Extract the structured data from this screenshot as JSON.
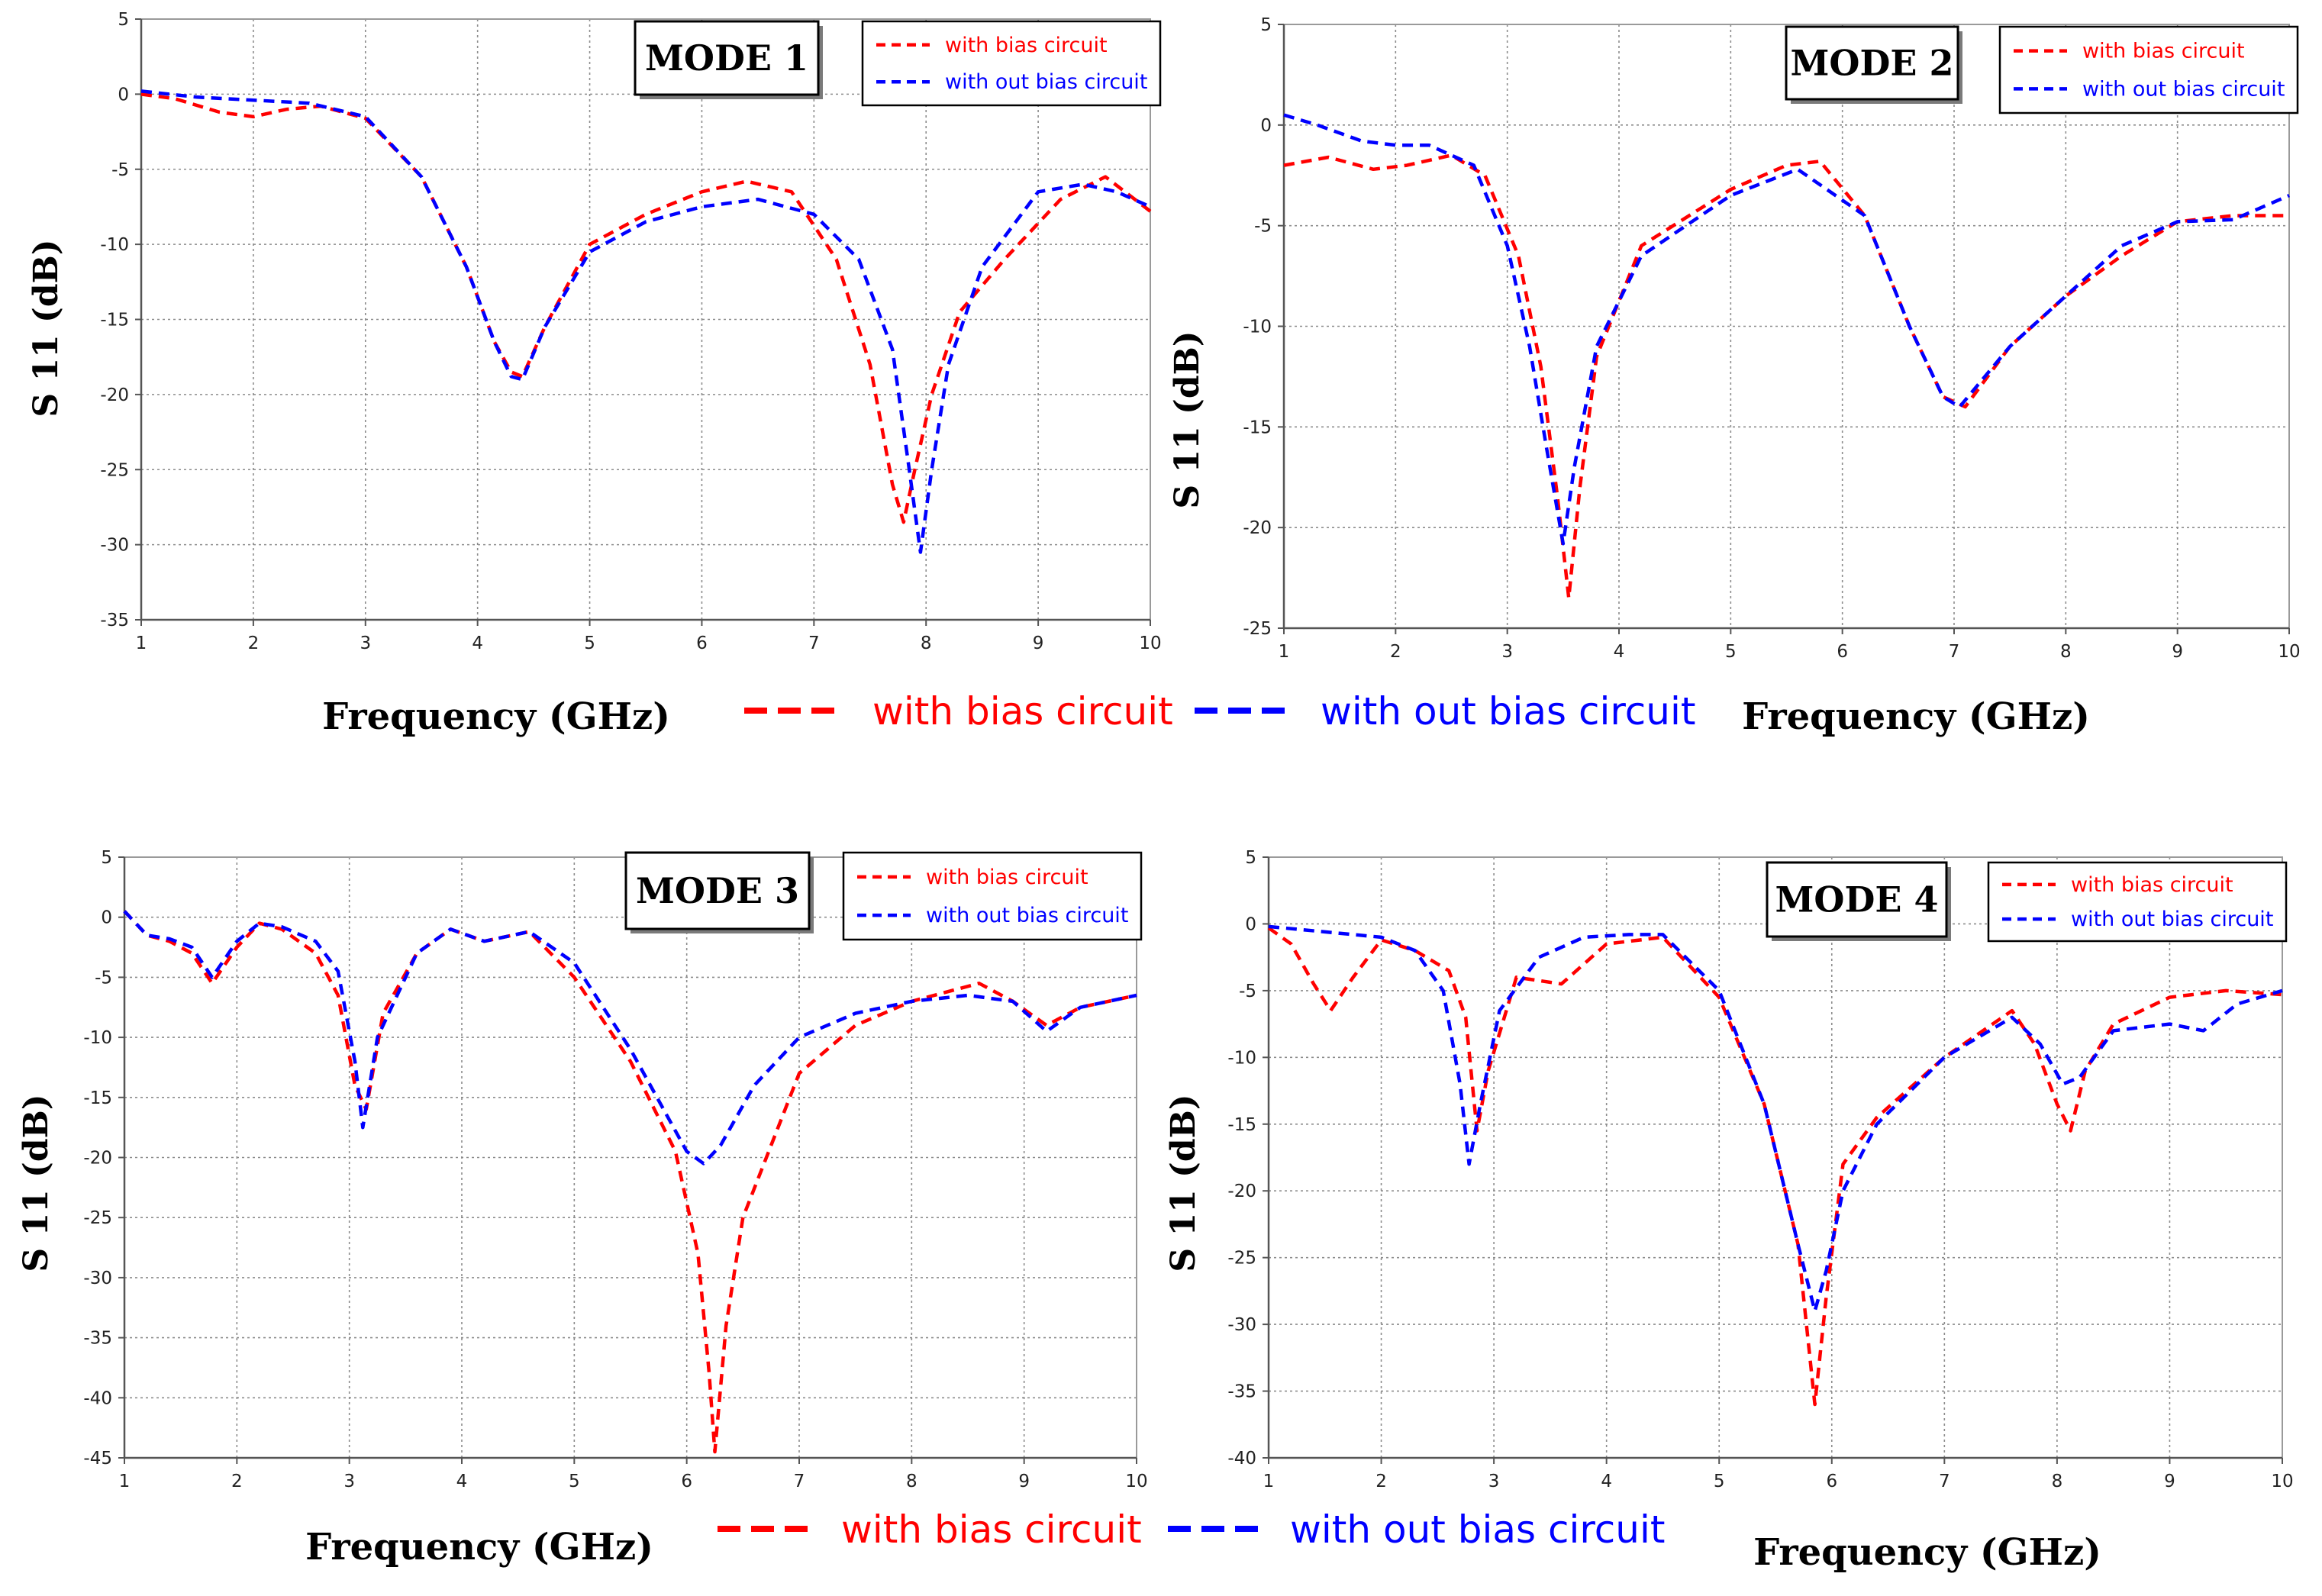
{
  "figure": {
    "big_legend": [
      {
        "label": "with bias circuit",
        "color": "#ff0000"
      },
      {
        "label": "with out bias circuit",
        "color": "#0000ff"
      }
    ]
  },
  "chart_data": [
    {
      "type": "line",
      "title": "MODE 1",
      "xlabel": "Frequency (GHz)",
      "ylabel": "S 11 (dB)",
      "xlim": [
        1,
        10
      ],
      "ylim": [
        -35,
        5
      ],
      "xticks": [
        1,
        2,
        3,
        4,
        5,
        6,
        7,
        8,
        9,
        10
      ],
      "yticks": [
        5,
        0,
        -5,
        -10,
        -15,
        -20,
        -25,
        -30,
        -35
      ],
      "grid": true,
      "legend_position": "top-right",
      "series": [
        {
          "name": "with bias circuit",
          "color": "#ff0000",
          "x": [
            1.0,
            1.3,
            1.7,
            2.0,
            2.3,
            2.6,
            3.0,
            3.5,
            3.9,
            4.15,
            4.3,
            4.4,
            4.6,
            5.0,
            5.5,
            6.0,
            6.4,
            6.8,
            7.2,
            7.5,
            7.7,
            7.8,
            7.9,
            8.05,
            8.3,
            8.7,
            9.2,
            9.6,
            10.0
          ],
          "y": [
            0,
            -0.3,
            -1.2,
            -1.5,
            -1.0,
            -0.8,
            -1.6,
            -5.5,
            -11.5,
            -16.5,
            -18.5,
            -18.8,
            -15.5,
            -10.0,
            -8.0,
            -6.5,
            -5.8,
            -6.5,
            -11.0,
            -18.0,
            -26.0,
            -28.5,
            -25.0,
            -20.0,
            -14.5,
            -11.0,
            -7.0,
            -5.5,
            -7.8
          ]
        },
        {
          "name": "with out bias circuit",
          "color": "#0000ff",
          "x": [
            1.0,
            1.5,
            2.0,
            2.5,
            3.0,
            3.5,
            3.9,
            4.15,
            4.3,
            4.4,
            4.6,
            5.0,
            5.5,
            6.0,
            6.5,
            7.0,
            7.4,
            7.7,
            7.85,
            7.95,
            8.05,
            8.2,
            8.5,
            9.0,
            9.4,
            9.7,
            10.0
          ],
          "y": [
            0.2,
            -0.2,
            -0.4,
            -0.6,
            -1.5,
            -5.5,
            -11.5,
            -16.5,
            -18.8,
            -19.0,
            -15.5,
            -10.5,
            -8.5,
            -7.5,
            -7.0,
            -8.0,
            -11.0,
            -17.0,
            -25.0,
            -30.5,
            -25.0,
            -18.0,
            -11.5,
            -6.5,
            -6.0,
            -6.5,
            -7.5
          ]
        }
      ]
    },
    {
      "type": "line",
      "title": "MODE 2",
      "xlabel": "Frequency (GHz)",
      "ylabel": "S 11 (dB)",
      "xlim": [
        1,
        10
      ],
      "ylim": [
        -25,
        5
      ],
      "xticks": [
        1,
        2,
        3,
        4,
        5,
        6,
        7,
        8,
        9,
        10
      ],
      "yticks": [
        5,
        0,
        -5,
        -10,
        -15,
        -20,
        -25
      ],
      "grid": true,
      "legend_position": "top-right",
      "series": [
        {
          "name": "with bias circuit",
          "color": "#ff0000",
          "x": [
            1.0,
            1.4,
            1.8,
            2.1,
            2.5,
            2.8,
            3.1,
            3.3,
            3.45,
            3.55,
            3.65,
            3.8,
            4.2,
            5.0,
            5.5,
            5.8,
            6.2,
            6.6,
            6.9,
            7.1,
            7.5,
            8.0,
            8.5,
            9.0,
            9.5,
            10.0
          ],
          "y": [
            -2.0,
            -1.6,
            -2.2,
            -2.0,
            -1.5,
            -2.5,
            -6.5,
            -12.0,
            -18.5,
            -23.5,
            -18.0,
            -11.5,
            -6.0,
            -3.2,
            -2.0,
            -1.8,
            -4.5,
            -10.0,
            -13.5,
            -14.0,
            -11.0,
            -8.5,
            -6.5,
            -4.8,
            -4.5,
            -4.5
          ]
        },
        {
          "name": "with out bias circuit",
          "color": "#0000ff",
          "x": [
            1.0,
            1.3,
            1.7,
            2.0,
            2.3,
            2.7,
            3.0,
            3.2,
            3.35,
            3.5,
            3.6,
            3.8,
            4.2,
            5.0,
            5.6,
            6.2,
            6.6,
            6.9,
            7.05,
            7.5,
            8.0,
            8.5,
            9.0,
            9.5,
            10.0
          ],
          "y": [
            0.5,
            0.0,
            -0.8,
            -1.0,
            -1.0,
            -2.0,
            -6.0,
            -11.0,
            -16.0,
            -20.8,
            -17.0,
            -11.0,
            -6.5,
            -3.5,
            -2.2,
            -4.5,
            -10.0,
            -13.5,
            -14.0,
            -11.0,
            -8.5,
            -6.0,
            -4.8,
            -4.7,
            -3.5
          ]
        }
      ]
    },
    {
      "type": "line",
      "title": "MODE 3",
      "xlabel": "Frequency (GHz)",
      "ylabel": "S 11 (dB)",
      "xlim": [
        1,
        10
      ],
      "ylim": [
        -45,
        5
      ],
      "xticks": [
        1,
        2,
        3,
        4,
        5,
        6,
        7,
        8,
        9,
        10
      ],
      "yticks": [
        5,
        0,
        -5,
        -10,
        -15,
        -20,
        -25,
        -30,
        -35,
        -40,
        -45
      ],
      "grid": true,
      "legend_position": "top-right",
      "series": [
        {
          "name": "with bias circuit",
          "color": "#ff0000",
          "x": [
            1.0,
            1.2,
            1.4,
            1.6,
            1.78,
            2.0,
            2.2,
            2.4,
            2.7,
            2.9,
            3.05,
            3.15,
            3.3,
            3.6,
            3.9,
            4.2,
            4.6,
            5.0,
            5.5,
            5.9,
            6.1,
            6.2,
            6.25,
            6.35,
            6.5,
            7.0,
            7.5,
            8.0,
            8.6,
            8.9,
            9.2,
            9.5,
            10.0
          ],
          "y": [
            0.5,
            -1.5,
            -2.0,
            -3.0,
            -5.5,
            -2.5,
            -0.5,
            -1.0,
            -3.0,
            -6.5,
            -14.0,
            -16.0,
            -8.0,
            -3.0,
            -1.0,
            -2.0,
            -1.2,
            -5.0,
            -12.0,
            -19.5,
            -28.0,
            -38.0,
            -44.5,
            -34.0,
            -25.0,
            -13.0,
            -9.0,
            -7.0,
            -5.5,
            -7.0,
            -9.0,
            -7.5,
            -6.5
          ]
        },
        {
          "name": "with out bias circuit",
          "color": "#0000ff",
          "x": [
            1.0,
            1.2,
            1.4,
            1.6,
            1.78,
            2.0,
            2.2,
            2.4,
            2.7,
            2.9,
            3.05,
            3.12,
            3.25,
            3.6,
            3.9,
            4.2,
            4.6,
            5.0,
            5.5,
            6.0,
            6.15,
            6.3,
            6.6,
            7.0,
            7.5,
            8.0,
            8.5,
            8.9,
            9.2,
            9.5,
            10.0
          ],
          "y": [
            0.5,
            -1.5,
            -1.8,
            -2.5,
            -5.0,
            -2.0,
            -0.5,
            -0.8,
            -2.0,
            -4.5,
            -12.0,
            -17.5,
            -10.0,
            -3.0,
            -1.0,
            -2.0,
            -1.2,
            -3.8,
            -11.0,
            -19.5,
            -20.5,
            -19.0,
            -14.0,
            -10.0,
            -8.0,
            -7.0,
            -6.5,
            -7.0,
            -9.5,
            -7.5,
            -6.5
          ]
        }
      ]
    },
    {
      "type": "line",
      "title": "MODE 4",
      "xlabel": "Frequency (GHz)",
      "ylabel": "S 11 (dB)",
      "xlim": [
        1,
        10
      ],
      "ylim": [
        -40,
        5
      ],
      "xticks": [
        1,
        2,
        3,
        4,
        5,
        6,
        7,
        8,
        9,
        10
      ],
      "yticks": [
        5,
        0,
        -5,
        -10,
        -15,
        -20,
        -25,
        -30,
        -35,
        -40
      ],
      "grid": true,
      "legend_position": "top-right",
      "series": [
        {
          "name": "with bias circuit",
          "color": "#ff0000",
          "x": [
            1.0,
            1.2,
            1.4,
            1.55,
            1.75,
            2.0,
            2.3,
            2.6,
            2.75,
            2.85,
            2.95,
            3.2,
            3.6,
            4.0,
            4.5,
            5.0,
            5.4,
            5.7,
            5.85,
            5.95,
            6.1,
            6.4,
            7.0,
            7.6,
            7.8,
            8.0,
            8.12,
            8.25,
            8.5,
            9.0,
            9.5,
            10.0
          ],
          "y": [
            -0.3,
            -1.5,
            -4.5,
            -6.5,
            -4.0,
            -1.2,
            -2.0,
            -3.5,
            -7.0,
            -15.5,
            -11.0,
            -4.0,
            -4.5,
            -1.5,
            -1.0,
            -5.5,
            -13.5,
            -24.0,
            -36.0,
            -28.0,
            -18.0,
            -14.5,
            -10.0,
            -6.5,
            -9.0,
            -13.5,
            -15.5,
            -11.0,
            -7.5,
            -5.5,
            -5.0,
            -5.3
          ]
        },
        {
          "name": "with out bias circuit",
          "color": "#0000ff",
          "x": [
            1.0,
            1.5,
            2.0,
            2.3,
            2.55,
            2.7,
            2.78,
            2.88,
            3.05,
            3.4,
            3.8,
            4.2,
            4.5,
            5.0,
            5.4,
            5.7,
            5.85,
            5.95,
            6.1,
            6.4,
            7.0,
            7.6,
            7.85,
            8.05,
            8.2,
            8.5,
            9.0,
            9.3,
            9.6,
            10.0
          ],
          "y": [
            -0.2,
            -0.6,
            -1.0,
            -2.0,
            -5.0,
            -12.0,
            -18.0,
            -13.5,
            -6.5,
            -2.5,
            -1.0,
            -0.8,
            -0.8,
            -5.0,
            -13.5,
            -24.0,
            -29.0,
            -26.0,
            -20.0,
            -15.0,
            -10.0,
            -7.0,
            -9.0,
            -12.0,
            -11.5,
            -8.0,
            -7.5,
            -8.0,
            -6.0,
            -5.0
          ]
        }
      ]
    }
  ]
}
